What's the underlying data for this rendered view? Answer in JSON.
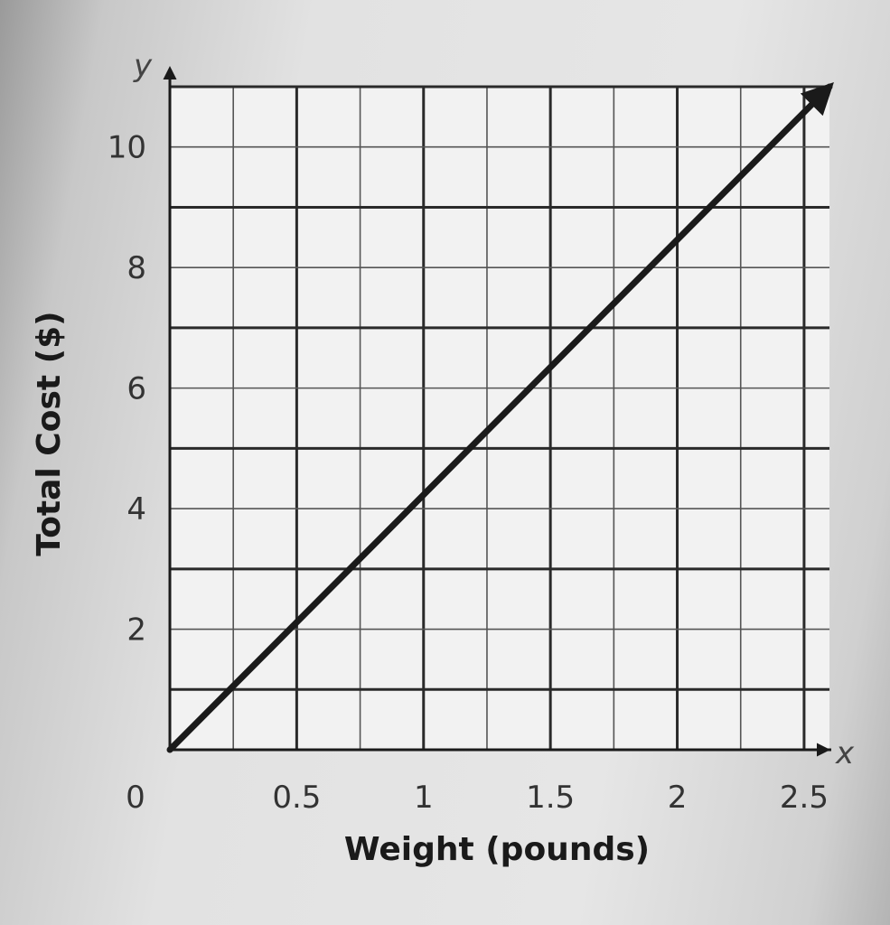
{
  "chart_data": {
    "type": "line",
    "title": "",
    "xlabel": "Weight (pounds)",
    "ylabel": "Total Cost ($)",
    "x_axis_var": "x",
    "y_axis_var": "y",
    "xlim": [
      0,
      2.6
    ],
    "ylim": [
      0,
      11
    ],
    "x_minor_step": 0.25,
    "y_minor_step": 1,
    "x_ticks": [
      {
        "value": 0,
        "label": "0"
      },
      {
        "value": 0.5,
        "label": "0.5"
      },
      {
        "value": 1,
        "label": "1"
      },
      {
        "value": 1.5,
        "label": "1.5"
      },
      {
        "value": 2,
        "label": "2"
      },
      {
        "value": 2.5,
        "label": "2.5"
      }
    ],
    "y_ticks": [
      {
        "value": 2,
        "label": "2"
      },
      {
        "value": 4,
        "label": "4"
      },
      {
        "value": 6,
        "label": "6"
      },
      {
        "value": 8,
        "label": "8"
      },
      {
        "value": 10,
        "label": "10"
      }
    ],
    "grid": true,
    "series": [
      {
        "x": [
          0,
          2.6
        ],
        "y": [
          0,
          11
        ],
        "arrow_end": true
      }
    ]
  }
}
